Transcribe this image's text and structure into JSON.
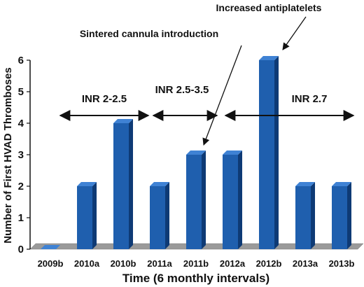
{
  "chart_data": {
    "type": "bar",
    "categories": [
      "2009b",
      "2010a",
      "2010b",
      "2011a",
      "2011b",
      "2012a",
      "2012b",
      "2013a",
      "2013b"
    ],
    "values": [
      0,
      2,
      4,
      2,
      3,
      3,
      6,
      2,
      2
    ],
    "title": "",
    "xlabel": "Time (6 monthly intervals)",
    "ylabel": "Number of First HVAD Thromboses",
    "ylim": [
      0,
      6
    ],
    "yticks": [
      0,
      1,
      2,
      3,
      4,
      5,
      6
    ],
    "grid": false,
    "colors": {
      "bar_front": "#1f5fae",
      "bar_side": "#0e3a75",
      "bar_top": "#3f82d4",
      "floor": "#9a9a9a"
    },
    "annotations": {
      "inr1": "INR 2-2.5",
      "inr2": "INR 2.5-3.5",
      "inr3": "INR 2.7",
      "cannula": "Sintered cannula introduction",
      "antiplatelets": "Increased antiplatelets"
    }
  }
}
